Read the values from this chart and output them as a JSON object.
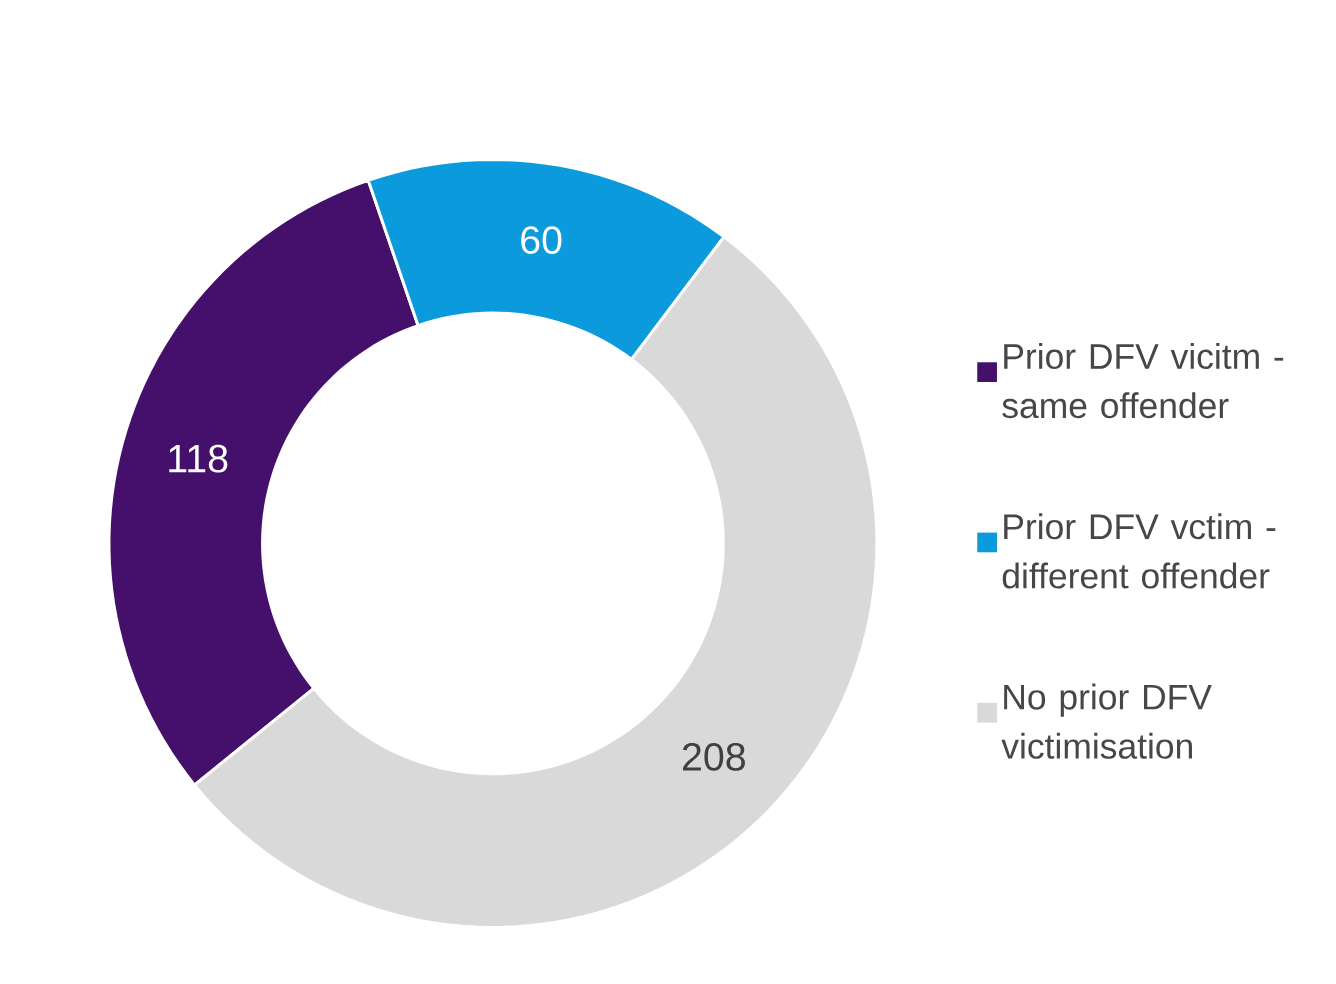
{
  "chart_data": {
    "type": "donut",
    "categories": [
      "Prior DFV vicitm - same offender",
      "Prior DFV vctim - different offender",
      "No prior DFV victimisation"
    ],
    "values": [
      118,
      60,
      208
    ],
    "colors": [
      "#45106c",
      "#0b9bdc",
      "#d9d9d9"
    ],
    "data_labels": true,
    "legend": "right"
  }
}
